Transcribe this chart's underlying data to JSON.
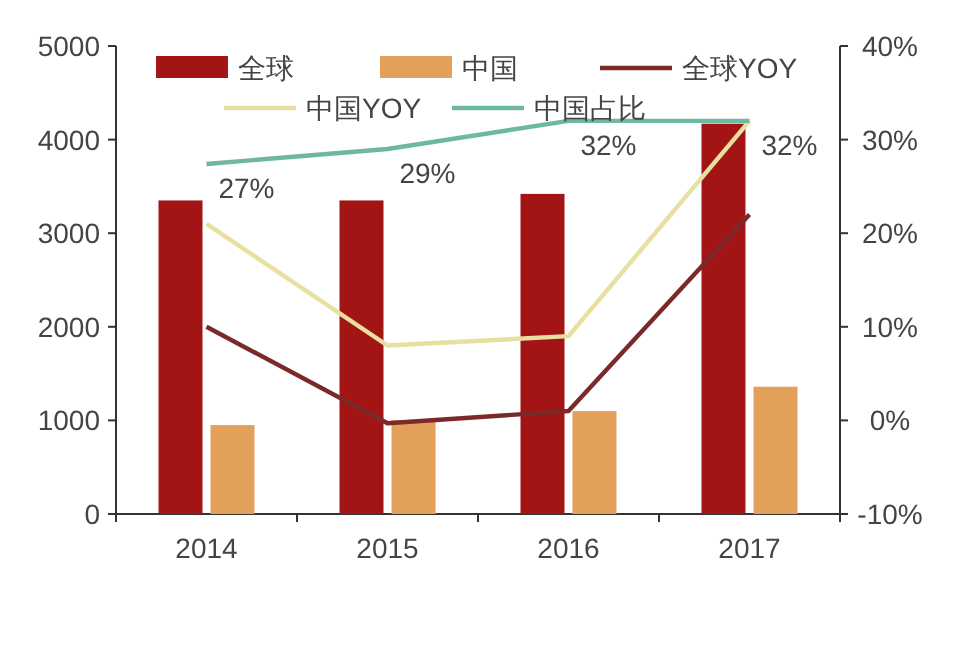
{
  "chart_data": {
    "type": "bar",
    "categories": [
      "2014",
      "2015",
      "2016",
      "2017"
    ],
    "series": [
      {
        "name": "全球",
        "color": "#a31515",
        "values": [
          3350,
          3350,
          3420,
          4170
        ]
      },
      {
        "name": "中国",
        "color": "#e3a05a",
        "values": [
          950,
          1000,
          1100,
          1360
        ]
      },
      {
        "name": "全球YOY",
        "type": "line",
        "axis": "y2",
        "color": "#7b2a2a",
        "values": [
          10,
          -0.3,
          1,
          22
        ]
      },
      {
        "name": "中国YOY",
        "type": "line",
        "axis": "y2",
        "color": "#e8e0a0",
        "values": [
          21,
          8,
          9,
          32
        ]
      },
      {
        "name": "中国占比",
        "type": "line",
        "axis": "y2",
        "color": "#6fb8a0",
        "values": [
          27.4,
          29,
          32,
          32
        ],
        "value_labels": [
          "27%",
          "29%",
          "32%",
          "32%"
        ]
      }
    ],
    "ylim": [
      0,
      5000
    ],
    "yticks": [
      0,
      1000,
      2000,
      3000,
      4000,
      5000
    ],
    "y2lim": [
      -10,
      40
    ],
    "y2ticks": [
      {
        "value": -10,
        "label": "-10%"
      },
      {
        "value": 0,
        "label": "0%"
      },
      {
        "value": 10,
        "label": "10%"
      },
      {
        "value": 20,
        "label": "20%"
      },
      {
        "value": 30,
        "label": "30%"
      },
      {
        "value": 40,
        "label": "40%"
      }
    ],
    "legend": "top"
  }
}
